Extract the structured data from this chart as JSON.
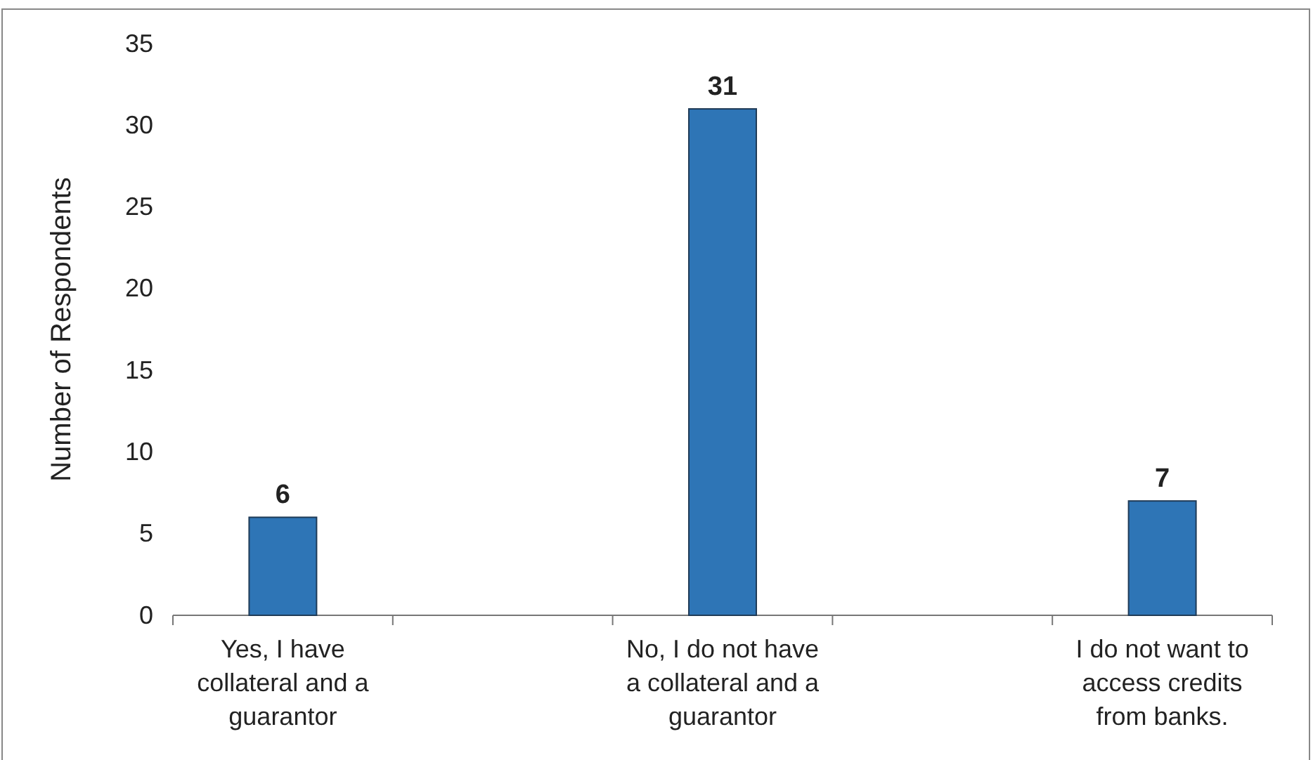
{
  "chart_data": {
    "type": "bar",
    "ylabel": "Number of Respondents",
    "categories": [
      "Yes, I have collateral and a guarantor",
      null,
      "No, I do not have a collateral and a guarantor",
      null,
      "I do not want to access credits from banks."
    ],
    "values": [
      6,
      null,
      31,
      null,
      7
    ],
    "color": "#2e75b6",
    "ylim": [
      0,
      35
    ],
    "yticks": [
      0,
      5,
      10,
      15,
      20,
      25,
      30,
      35
    ],
    "data_labels": true,
    "grid": false
  }
}
